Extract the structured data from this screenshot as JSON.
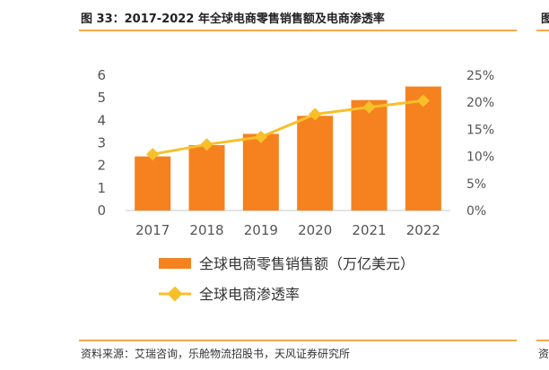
{
  "title": "图 33：2017-2022 年全球电商零售销售额及电商渗透率",
  "cut_title": "图",
  "source": "资料来源：艾瑞咨询，乐舱物流招股书，天风证券研究所",
  "cut_source": "资",
  "chart_data": {
    "type": "bar",
    "categories": [
      "2017",
      "2018",
      "2019",
      "2020",
      "2021",
      "2022"
    ],
    "series": [
      {
        "name": "全球电商零售销售额（万亿美元）",
        "type": "bar",
        "axis": "left",
        "values": [
          2.4,
          2.9,
          3.4,
          4.2,
          4.9,
          5.5
        ],
        "color": "#f5821f"
      },
      {
        "name": "全球电商渗透率",
        "type": "line",
        "axis": "right",
        "values": [
          10.4,
          12.2,
          13.6,
          17.8,
          19.1,
          20.3
        ],
        "color": "#f7c02a"
      }
    ],
    "ylim_left": [
      0,
      6
    ],
    "yticks_left": [
      "0",
      "1",
      "2",
      "3",
      "4",
      "5",
      "6"
    ],
    "ylim_right": [
      0,
      25
    ],
    "yticks_right": [
      "0%",
      "5%",
      "10%",
      "15%",
      "20%",
      "25%"
    ],
    "grid": false,
    "legend": "bottom"
  }
}
